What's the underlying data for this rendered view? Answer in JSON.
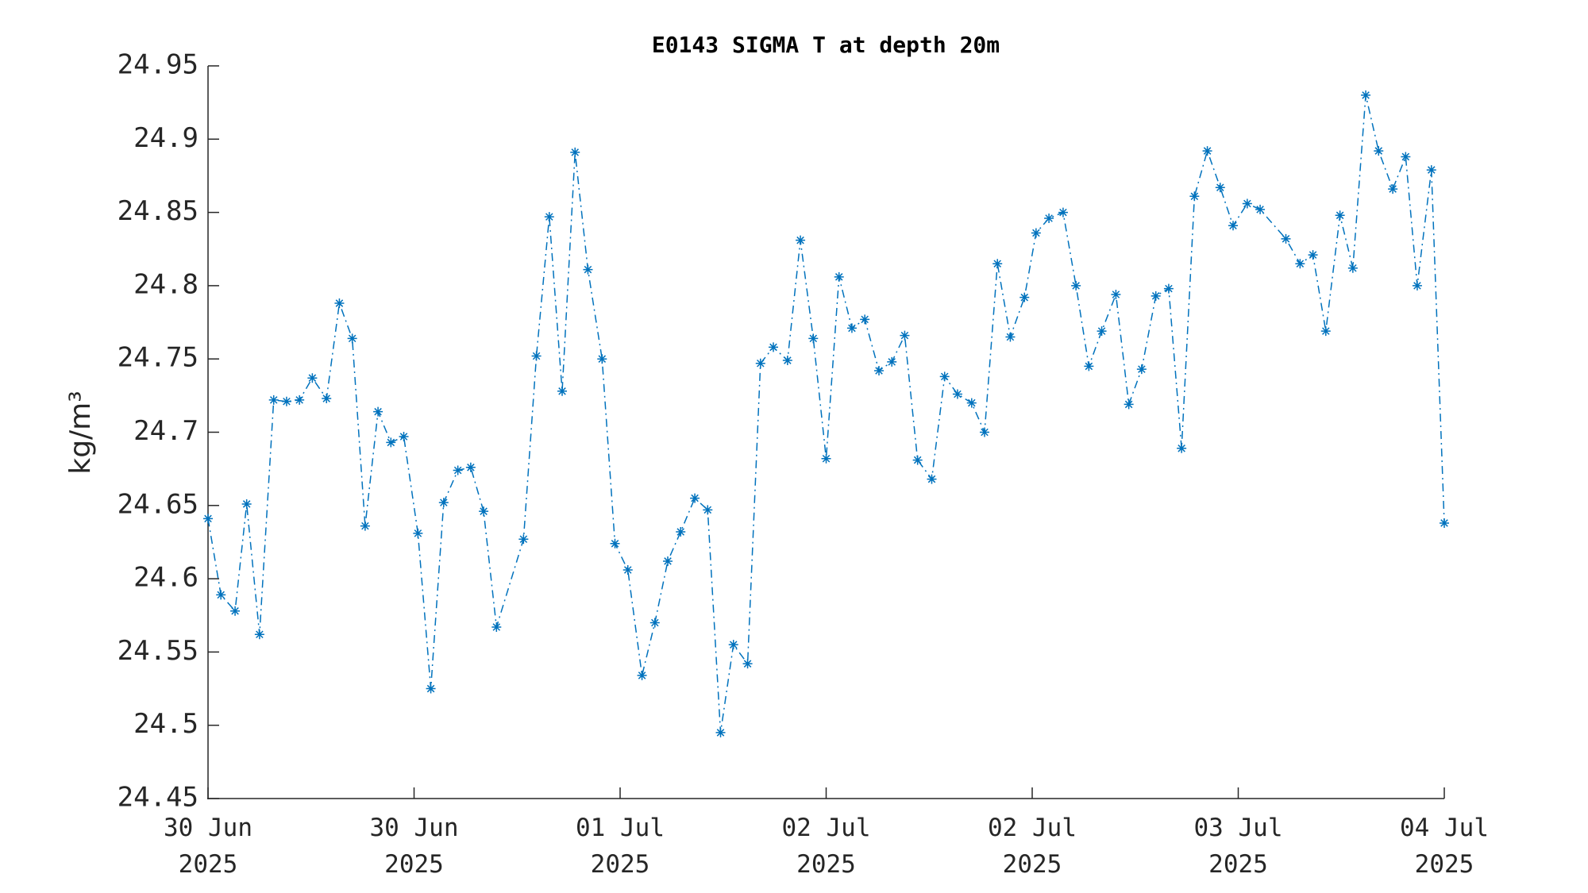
{
  "chart_data": {
    "type": "line",
    "title": "E0143 SIGMA T at depth 20m",
    "y_label": "kg/m³",
    "x": [
      0,
      1.0,
      2.1,
      3.0,
      4.0,
      5.1,
      6.1,
      7.1,
      8.1,
      9.2,
      10.2,
      11.2,
      12.2,
      13.2,
      14.2,
      15.2,
      16.3,
      17.3,
      18.3,
      19.4,
      20.4,
      21.4,
      22.4,
      24.5,
      25.5,
      26.5,
      27.5,
      28.5,
      29.5,
      30.6,
      31.6,
      32.6,
      33.7,
      34.7,
      35.7,
      36.7,
      37.8,
      38.8,
      39.8,
      40.8,
      41.9,
      42.9,
      43.9,
      45.0,
      46.0,
      47.0,
      48.0,
      49.0,
      50.0,
      51.0,
      52.1,
      53.1,
      54.1,
      55.1,
      56.2,
      57.2,
      58.2,
      59.3,
      60.3,
      61.3,
      62.3,
      63.4,
      64.3,
      65.3,
      66.4,
      67.4,
      68.4,
      69.4,
      70.5,
      71.5,
      72.5,
      73.6,
      74.6,
      75.6,
      76.6,
      77.6,
      78.6,
      79.6,
      80.7,
      81.7,
      83.7,
      84.8,
      85.8,
      86.8,
      87.9,
      88.9,
      89.9,
      90.9,
      92.0,
      93.0,
      93.9,
      95.0,
      96.0
    ],
    "series": [
      {
        "name": "SIGMA T",
        "color": "#0072bd",
        "values": [
          24.641,
          24.589,
          24.578,
          24.651,
          24.562,
          24.722,
          24.721,
          24.722,
          24.737,
          24.723,
          24.788,
          24.764,
          24.636,
          24.714,
          24.693,
          24.697,
          24.631,
          24.525,
          24.652,
          24.674,
          24.676,
          24.646,
          24.567,
          24.627,
          24.752,
          24.847,
          24.728,
          24.891,
          24.811,
          24.75,
          24.624,
          24.606,
          24.534,
          24.57,
          24.612,
          24.632,
          24.655,
          24.647,
          24.495,
          24.555,
          24.542,
          24.747,
          24.758,
          24.749,
          24.831,
          24.764,
          24.682,
          24.806,
          24.771,
          24.777,
          24.742,
          24.748,
          24.766,
          24.681,
          24.668,
          24.738,
          24.726,
          24.72,
          24.7,
          24.815,
          24.765,
          24.792,
          24.836,
          24.846,
          24.85,
          24.8,
          24.745,
          24.769,
          24.794,
          24.719,
          24.743,
          24.793,
          24.798,
          24.689,
          24.861,
          24.892,
          24.867,
          24.841,
          24.856,
          24.852,
          24.832,
          24.815,
          24.821,
          24.769,
          24.848,
          24.812,
          24.93,
          24.892,
          24.866,
          24.888,
          24.8,
          24.879,
          24.638
        ]
      }
    ],
    "xlim": [
      0,
      96
    ],
    "xticks": [
      {
        "value": 0,
        "label": "30 Jun\n2025"
      },
      {
        "value": 16,
        "label": "30 Jun\n2025"
      },
      {
        "value": 32,
        "label": "01 Jul\n2025"
      },
      {
        "value": 48,
        "label": "02 Jul\n2025"
      },
      {
        "value": 64,
        "label": "02 Jul\n2025"
      },
      {
        "value": 80,
        "label": "03 Jul\n2025"
      },
      {
        "value": 96,
        "label": "04 Jul\n2025"
      }
    ],
    "ylim": [
      24.45,
      24.95
    ],
    "yticks": [
      24.45,
      24.5,
      24.55,
      24.6,
      24.65,
      24.7,
      24.75,
      24.8,
      24.85,
      24.9,
      24.95
    ],
    "grid": false
  }
}
